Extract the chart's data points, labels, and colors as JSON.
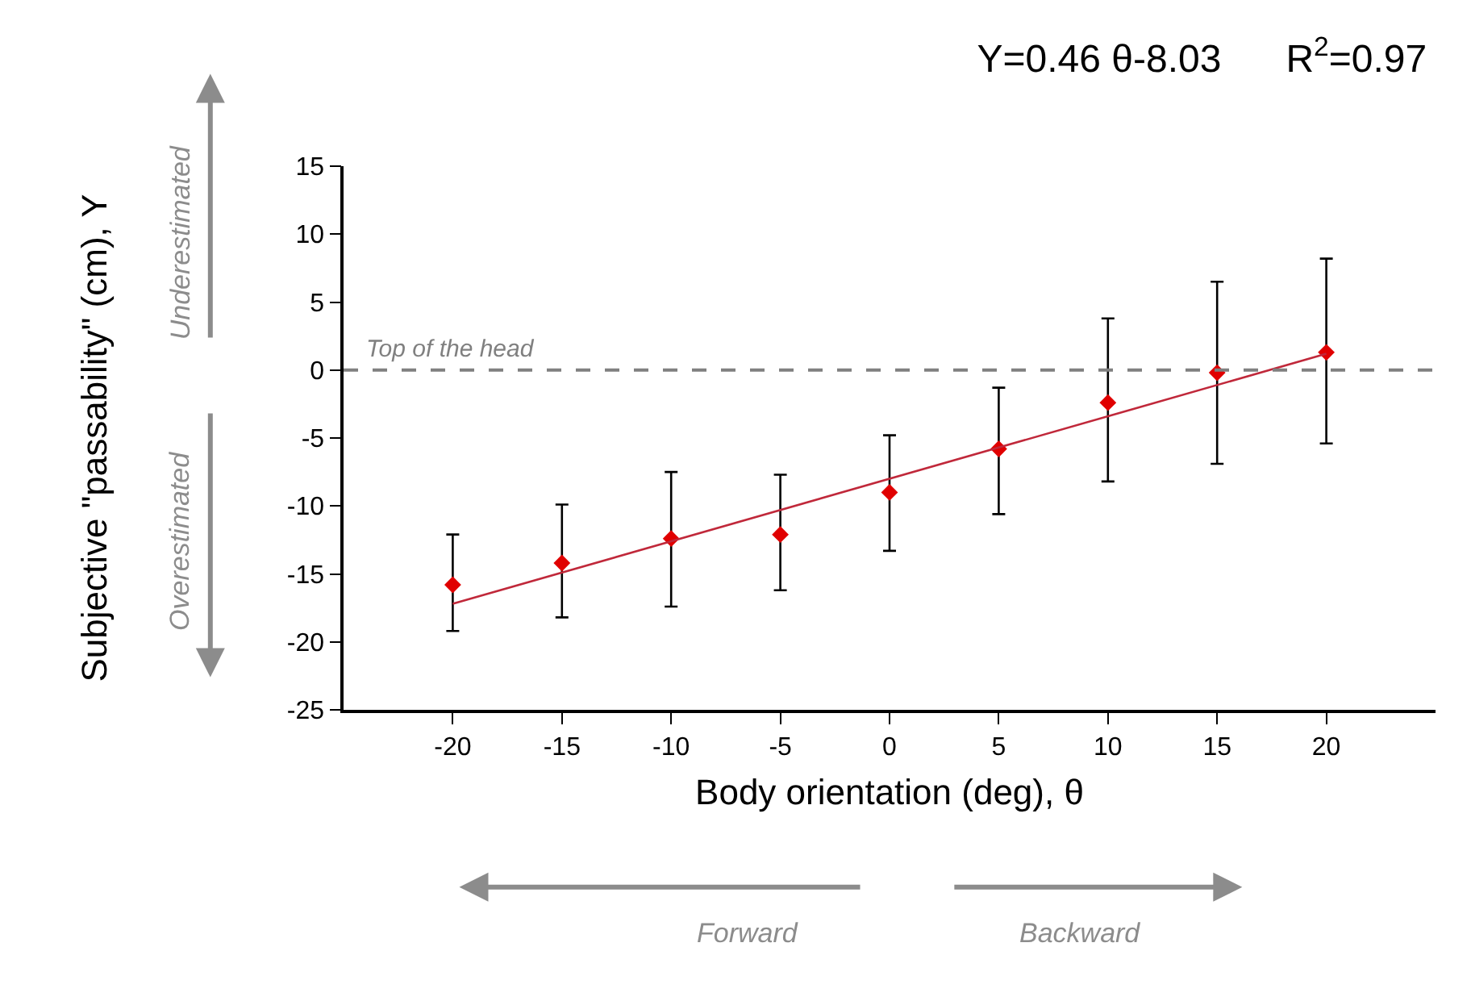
{
  "chart_data": {
    "type": "scatter",
    "title": "Y=0.46 θ-8.03      R$^{2}$=0.97",
    "xlabel": "Body orientation (deg), θ",
    "ylabel": "Subjective \"passability\" (cm), Y",
    "x": [
      -20,
      -15,
      -10,
      -5,
      0,
      5,
      10,
      15,
      20
    ],
    "series": [
      {
        "color": "#e00000",
        "values": [
          -15.8,
          -14.2,
          -12.4,
          -12.1,
          -9.0,
          -5.8,
          -2.4,
          -0.2,
          1.3
        ],
        "errors": [
          [
            -19.2,
            -12.1
          ],
          [
            -18.2,
            -9.9
          ],
          [
            -17.4,
            -7.5
          ],
          [
            -16.2,
            -7.7
          ],
          [
            -13.3,
            -4.8
          ],
          [
            -10.6,
            -1.3
          ],
          [
            -8.2,
            3.8
          ],
          [
            -6.9,
            6.5
          ],
          [
            -5.4,
            8.2
          ]
        ]
      },
      {
        "type": "line",
        "color": "#c0283a",
        "x": [
          -20,
          20
        ],
        "values": [
          -17.2,
          1.2
        ],
        "marker": "none"
      }
    ],
    "xlim": [
      -25,
      25
    ],
    "xticks": [
      -20,
      -15,
      -10,
      -5,
      0,
      5,
      10,
      15,
      20
    ],
    "ylim": [
      -25,
      15
    ],
    "yticks": [
      -25,
      -20,
      -15,
      -10,
      -5,
      0,
      5,
      10,
      15
    ],
    "ref_lines": [
      {
        "axis": "y",
        "value": 0,
        "label": "Top of the head",
        "color": "#808080",
        "line_style": "dashed"
      }
    ],
    "annotations": [
      "Underestimated",
      "Overestimated",
      "Forward",
      "Backward"
    ],
    "marker": "diamond"
  }
}
